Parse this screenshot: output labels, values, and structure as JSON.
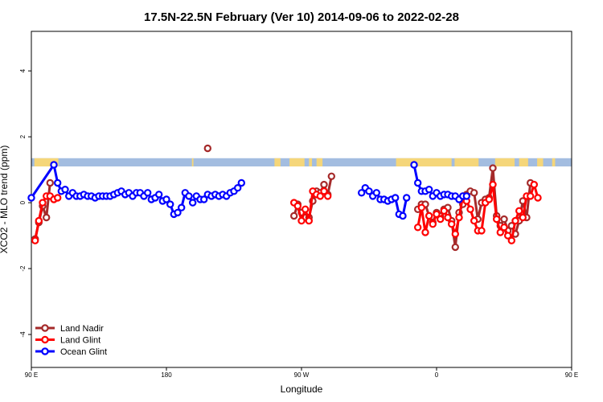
{
  "chart_data": {
    "type": "line",
    "title": "17.5N-22.5N February (Ver 10)   2014-09-06 to 2022-02-28",
    "xlabel": "Longitude",
    "ylabel": "XCO2 - MLO trend (ppm)",
    "xlim": [
      -180,
      180
    ],
    "ylim": [
      -5,
      5.2
    ],
    "xticks": [
      {
        "v": -180,
        "label": "90 E"
      },
      {
        "v": -90,
        "label": "180"
      },
      {
        "v": 0,
        "label": "90 W"
      },
      {
        "v": 90,
        "label": "0"
      },
      {
        "v": 180,
        "label": "90 E"
      }
    ],
    "yticks": [
      {
        "v": -4,
        "label": "-4"
      },
      {
        "v": -2,
        "label": "-2"
      },
      {
        "v": 0,
        "label": "0"
      },
      {
        "v": 2,
        "label": "2"
      },
      {
        "v": 4,
        "label": "4"
      }
    ],
    "land_ocean_strip": {
      "y_range": [
        1.1,
        1.35
      ],
      "ocean_color": "#a3bde0",
      "land_color": "#f5d67a",
      "land_segments": [
        [
          -178,
          -162
        ],
        [
          -73,
          -72
        ],
        [
          -18,
          -14
        ],
        [
          -8,
          2
        ],
        [
          5,
          7
        ],
        [
          10,
          14
        ],
        [
          63,
          100
        ],
        [
          102,
          118
        ],
        [
          129,
          142
        ],
        [
          145,
          151
        ],
        [
          157,
          161
        ],
        [
          167,
          169
        ]
      ]
    },
    "legend_position": "bottom-left",
    "series": [
      {
        "name": "Land Nadir",
        "color": "#a52a2a",
        "segments": [
          [
            [
              -177.5,
              -1.1
            ],
            [
              -175,
              -0.6
            ],
            [
              -172.5,
              -0.1
            ],
            [
              -170,
              -0.45
            ],
            [
              -167.5,
              0.6
            ]
          ],
          [
            [
              -62.5,
              1.65
            ]
          ],
          [
            [
              -5,
              -0.4
            ],
            [
              -2.5,
              -0.05
            ],
            [
              0,
              -0.3
            ],
            [
              2.5,
              -0.45
            ],
            [
              5,
              -0.45
            ],
            [
              7.5,
              0.05
            ],
            [
              10,
              0.35
            ],
            [
              12.5,
              0.3
            ],
            [
              15,
              0.55
            ],
            [
              17.5,
              0.25
            ],
            [
              20,
              0.8
            ]
          ],
          [
            [
              77.5,
              -0.2
            ],
            [
              80,
              -0.05
            ],
            [
              82.5,
              -0.05
            ],
            [
              85,
              -0.4
            ],
            [
              87.5,
              -0.6
            ],
            [
              90,
              -0.3
            ],
            [
              92.5,
              -0.4
            ],
            [
              95,
              -0.2
            ],
            [
              97.5,
              -0.15
            ],
            [
              100,
              -0.55
            ],
            [
              102.5,
              -1.35
            ],
            [
              105,
              -0.3
            ],
            [
              107.5,
              -0.05
            ],
            [
              110,
              0.25
            ],
            [
              112.5,
              0.35
            ],
            [
              115,
              0.3
            ],
            [
              117.5,
              -0.5
            ],
            [
              120,
              0.0
            ],
            [
              122.5,
              0.1
            ],
            [
              125,
              0.15
            ],
            [
              127.5,
              1.05
            ],
            [
              130,
              -0.4
            ],
            [
              132.5,
              -0.7
            ],
            [
              135,
              -0.5
            ],
            [
              137.5,
              -0.85
            ],
            [
              140,
              -0.7
            ],
            [
              142.5,
              -0.95
            ],
            [
              145,
              -0.55
            ],
            [
              147.5,
              0.05
            ],
            [
              150,
              -0.45
            ],
            [
              152.5,
              0.6
            ]
          ]
        ]
      },
      {
        "name": "Land Glint",
        "color": "#ff0000",
        "segments": [
          [
            [
              -177.5,
              -1.15
            ],
            [
              -175,
              -0.55
            ],
            [
              -172.5,
              0.0
            ],
            [
              -170,
              0.2
            ],
            [
              -167.5,
              0.2
            ],
            [
              -165,
              0.1
            ],
            [
              -162.5,
              0.15
            ]
          ],
          [
            [
              -5,
              0.0
            ],
            [
              -2.5,
              -0.1
            ],
            [
              0,
              -0.55
            ],
            [
              2.5,
              -0.2
            ],
            [
              5,
              -0.55
            ],
            [
              7.5,
              0.35
            ],
            [
              10,
              0.25
            ],
            [
              12.5,
              0.2
            ],
            [
              15,
              0.35
            ],
            [
              17.5,
              0.2
            ]
          ],
          [
            [
              77.5,
              -0.75
            ],
            [
              80,
              -0.15
            ],
            [
              82.5,
              -0.9
            ],
            [
              85,
              -0.4
            ],
            [
              87.5,
              -0.65
            ],
            [
              90,
              -0.35
            ],
            [
              92.5,
              -0.5
            ],
            [
              95,
              -0.25
            ],
            [
              97.5,
              -0.45
            ],
            [
              100,
              -0.65
            ],
            [
              102.5,
              -0.95
            ],
            [
              105,
              -0.45
            ],
            [
              107.5,
              0.2
            ],
            [
              110,
              0.05
            ],
            [
              112.5,
              -0.2
            ],
            [
              115,
              -0.55
            ],
            [
              117.5,
              -0.85
            ],
            [
              120,
              -0.85
            ],
            [
              122.5,
              0.0
            ],
            [
              125,
              0.1
            ],
            [
              127.5,
              0.55
            ],
            [
              130,
              -0.5
            ],
            [
              132.5,
              -0.9
            ],
            [
              135,
              -0.75
            ],
            [
              137.5,
              -1.0
            ],
            [
              140,
              -1.15
            ],
            [
              142.5,
              -0.55
            ],
            [
              145,
              -0.25
            ],
            [
              147.5,
              -0.45
            ],
            [
              150,
              0.2
            ],
            [
              152.5,
              0.2
            ],
            [
              155,
              0.55
            ],
            [
              157.5,
              0.15
            ]
          ]
        ]
      },
      {
        "name": "Ocean Glint",
        "color": "#0000ff",
        "segments": [
          [
            [
              -180,
              0.15
            ],
            [
              -165,
              1.15
            ],
            [
              -162.5,
              0.6
            ],
            [
              -160,
              0.35
            ],
            [
              -157.5,
              0.4
            ],
            [
              -155,
              0.2
            ],
            [
              -152.5,
              0.3
            ],
            [
              -150,
              0.2
            ],
            [
              -147.5,
              0.2
            ],
            [
              -145,
              0.25
            ],
            [
              -142.5,
              0.2
            ],
            [
              -140,
              0.2
            ],
            [
              -137.5,
              0.15
            ],
            [
              -135,
              0.2
            ],
            [
              -132.5,
              0.2
            ],
            [
              -130,
              0.2
            ],
            [
              -127.5,
              0.2
            ],
            [
              -125,
              0.25
            ],
            [
              -122.5,
              0.3
            ],
            [
              -120,
              0.35
            ],
            [
              -117.5,
              0.25
            ],
            [
              -115,
              0.3
            ],
            [
              -112.5,
              0.2
            ],
            [
              -110,
              0.3
            ],
            [
              -107.5,
              0.3
            ],
            [
              -105,
              0.2
            ],
            [
              -102.5,
              0.3
            ],
            [
              -100,
              0.1
            ],
            [
              -97.5,
              0.15
            ],
            [
              -95,
              0.25
            ],
            [
              -92.5,
              0.05
            ],
            [
              -90,
              0.1
            ],
            [
              -87.5,
              -0.05
            ],
            [
              -85,
              -0.35
            ],
            [
              -82.5,
              -0.3
            ],
            [
              -80,
              -0.15
            ],
            [
              -77.5,
              0.3
            ],
            [
              -75,
              0.2
            ],
            [
              -72.5,
              0.0
            ],
            [
              -70,
              0.2
            ],
            [
              -67.5,
              0.1
            ],
            [
              -65,
              0.1
            ],
            [
              -62.5,
              0.25
            ],
            [
              -60,
              0.2
            ],
            [
              -57.5,
              0.25
            ],
            [
              -55,
              0.2
            ],
            [
              -52.5,
              0.25
            ],
            [
              -50,
              0.2
            ],
            [
              -47.5,
              0.3
            ],
            [
              -45,
              0.35
            ],
            [
              -42.5,
              0.45
            ],
            [
              -40,
              0.6
            ]
          ],
          [
            [
              40,
              0.3
            ],
            [
              42.5,
              0.45
            ],
            [
              45,
              0.35
            ],
            [
              47.5,
              0.2
            ],
            [
              50,
              0.3
            ],
            [
              52.5,
              0.1
            ],
            [
              55,
              0.1
            ],
            [
              57.5,
              0.05
            ],
            [
              60,
              0.1
            ],
            [
              62.5,
              0.15
            ],
            [
              65,
              -0.35
            ],
            [
              67.5,
              -0.4
            ],
            [
              70,
              0.15
            ]
          ],
          [
            [
              75,
              1.15
            ],
            [
              77.5,
              0.6
            ],
            [
              80,
              0.35
            ],
            [
              82.5,
              0.35
            ],
            [
              85,
              0.4
            ],
            [
              87.5,
              0.2
            ],
            [
              90,
              0.3
            ],
            [
              92.5,
              0.2
            ],
            [
              95,
              0.25
            ],
            [
              97.5,
              0.25
            ],
            [
              100,
              0.2
            ],
            [
              102.5,
              0.2
            ],
            [
              105,
              0.1
            ],
            [
              107.5,
              0.2
            ],
            [
              110,
              0.2
            ]
          ]
        ]
      }
    ]
  }
}
